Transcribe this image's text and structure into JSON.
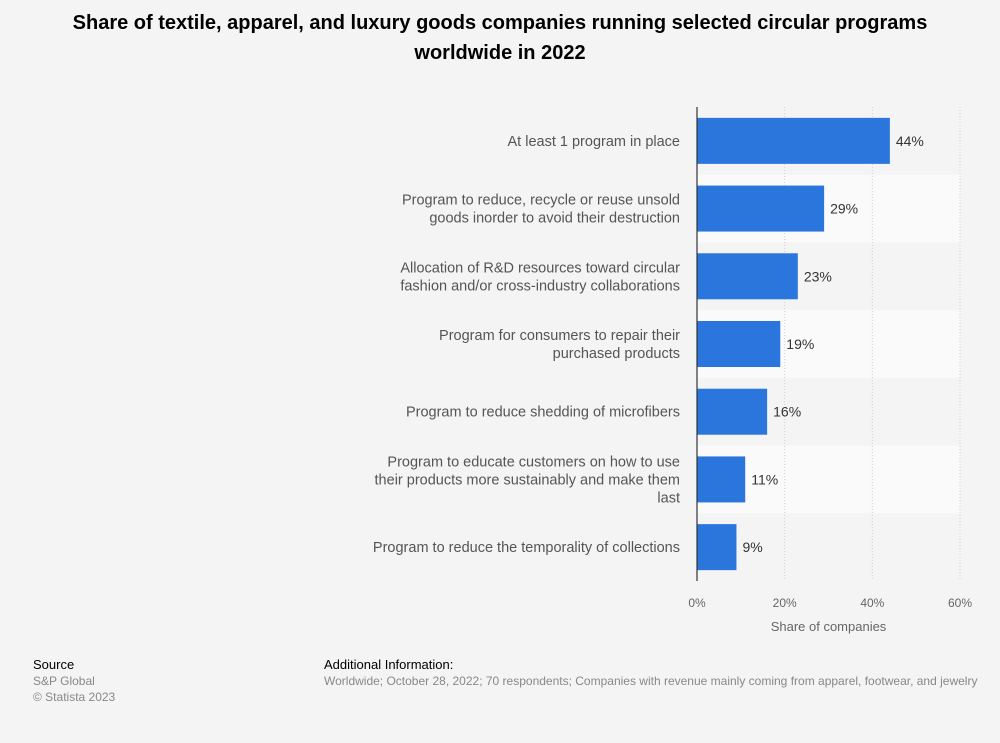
{
  "title": "Share of textile, apparel, and luxury goods companies running selected circular programs worldwide in 2022",
  "chart_data": {
    "type": "bar",
    "orientation": "horizontal",
    "categories": [
      "At least 1 program in place",
      "Program to reduce, recycle or reuse unsold goods inorder to avoid their destruction",
      "Allocation of R&D resources toward circular fashion and/or cross-industry collaborations",
      "Program for consumers to repair their purchased products",
      "Program to reduce shedding of microfibers",
      "Program to educate customers on how to use their products more sustainably and make them last",
      "Program to reduce the temporality of collections"
    ],
    "category_lines": [
      [
        "At least 1 program in place"
      ],
      [
        "Program to reduce, recycle or reuse unsold",
        "goods inorder to avoid their destruction"
      ],
      [
        "Allocation of R&D resources toward circular",
        "fashion and/or cross-industry collaborations"
      ],
      [
        "Program for consumers to repair their",
        "purchased products"
      ],
      [
        "Program to reduce shedding of microfibers"
      ],
      [
        "Program to educate customers on how to use",
        "their products more sustainably and make them",
        "last"
      ],
      [
        "Program to reduce the temporality of collections"
      ]
    ],
    "values": [
      44,
      29,
      23,
      19,
      16,
      11,
      9
    ],
    "value_labels": [
      "44%",
      "29%",
      "23%",
      "19%",
      "16%",
      "11%",
      "9%"
    ],
    "xlim": [
      0,
      60
    ],
    "ticks": [
      0,
      20,
      40,
      60
    ],
    "tick_labels": [
      "0%",
      "20%",
      "40%",
      "60%"
    ],
    "xlabel": "Share of companies",
    "grid": true,
    "bar_color": "#2a76dd"
  },
  "footer": {
    "source_heading": "Source",
    "source_lines": [
      "S&P Global",
      "© Statista 2023"
    ],
    "info_heading": "Additional Information:",
    "info_text": "Worldwide; October 28, 2022; 70 respondents; Companies with revenue mainly coming from apparel, footwear, and jewelry"
  }
}
